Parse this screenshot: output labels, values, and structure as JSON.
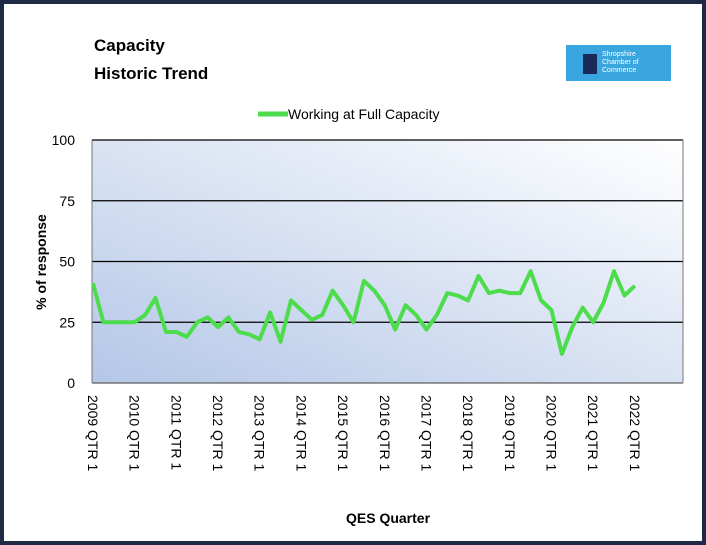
{
  "chart_data": {
    "type": "line",
    "title": [
      "Capacity",
      "Historic Trend"
    ],
    "logo_text": [
      "Shropshire",
      "Chamber of",
      "Commerce"
    ],
    "x_label": "QES Quarter",
    "y_label": "% of response",
    "categories": [
      "2009 QTR 1",
      null,
      null,
      null,
      "2010 QTR 1",
      null,
      null,
      null,
      "2011 QTR 1",
      null,
      null,
      null,
      "2012 QTR 1",
      null,
      null,
      null,
      "2013 QTR 1",
      null,
      null,
      null,
      "2014 QTR 1",
      null,
      null,
      null,
      "2015 QTR 1",
      null,
      null,
      null,
      "2016 QTR 1",
      null,
      null,
      null,
      "2017 QTR 1",
      null,
      null,
      null,
      "2018 QTR 1",
      null,
      null,
      null,
      "2019 QTR 1",
      null,
      null,
      null,
      "2020 QTR 1",
      null,
      null,
      null,
      "2021 QTR 1",
      null,
      null,
      null,
      "2022 QTR 1"
    ],
    "series": [
      {
        "name": "Working at Full Capacity",
        "color": "#4cdc4c",
        "values": [
          41,
          25,
          25,
          25,
          25,
          28,
          35,
          21,
          21,
          19,
          25,
          27,
          23,
          27,
          21,
          20,
          18,
          29,
          17,
          34,
          30,
          26,
          28,
          38,
          32,
          25,
          42,
          38,
          32,
          22,
          32,
          28,
          22,
          28,
          37,
          36,
          34,
          44,
          37,
          38,
          37,
          37,
          46,
          34,
          30,
          12,
          23,
          31,
          25,
          33,
          46,
          36,
          40
        ]
      }
    ],
    "ylim": [
      0,
      100
    ],
    "yticks": [
      0,
      25,
      50,
      75,
      100
    ],
    "grid": true,
    "legend": "top"
  }
}
